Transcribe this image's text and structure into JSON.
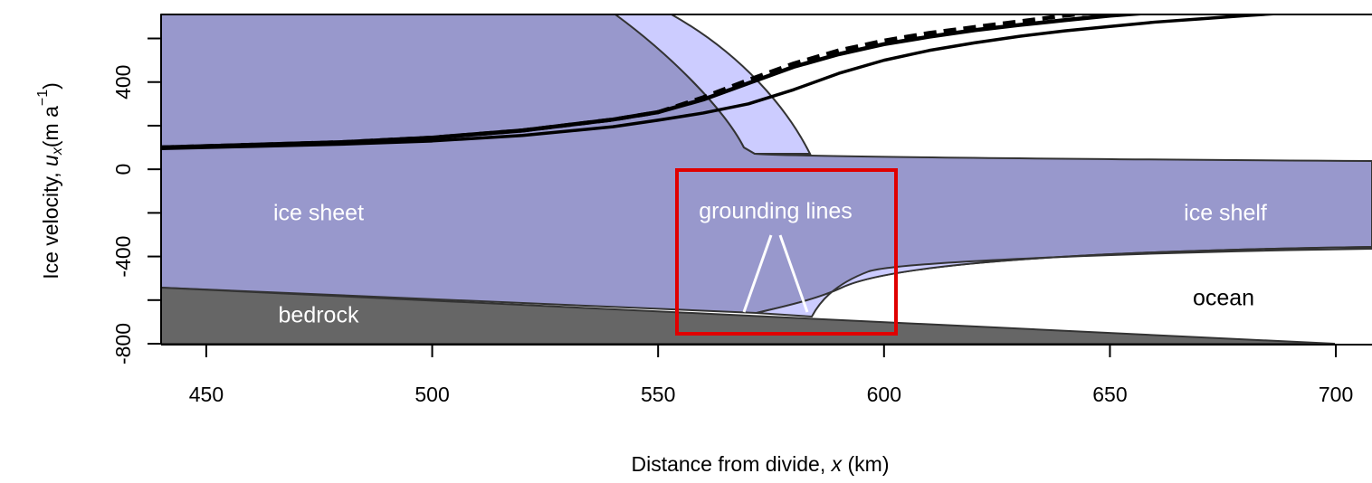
{
  "chart_data": {
    "type": "line",
    "xlabel": [
      "Distance from divide, ",
      "x",
      " (km)"
    ],
    "ylabel": [
      "Ice velocity, ",
      "u",
      "x",
      "(m a",
      "−1",
      ")"
    ],
    "annotations": [
      "ice sheet",
      "grounding lines",
      "ice shelf",
      "ocean",
      "bedrock"
    ],
    "xlim": [
      440,
      708
    ],
    "ylim": [
      -800,
      710
    ],
    "xticks": [
      450,
      500,
      550,
      600,
      650,
      700
    ],
    "yticks": [
      -800,
      {
        "value": -600,
        "label": null
      },
      -400,
      {
        "value": -200,
        "label": null
      },
      0,
      {
        "value": 200,
        "label": null
      },
      400,
      {
        "value": 600,
        "label": null
      }
    ],
    "x": [
      440,
      460,
      480,
      500,
      520,
      540,
      550,
      560,
      570,
      580,
      590,
      600,
      610,
      620,
      630,
      640,
      650,
      660,
      670,
      680,
      690
    ],
    "series": [
      {
        "color": "#000000",
        "dashed": false,
        "width": 4.5,
        "values": [
          100,
          112,
          124,
          145,
          178,
          228,
          262,
          320,
          395,
          470,
          528,
          574,
          608,
          638,
          662,
          684,
          705,
          720,
          null,
          null,
          null
        ]
      },
      {
        "color": "#000000",
        "dashed": true,
        "width": 4.5,
        "values": [
          100,
          112,
          124,
          145,
          178,
          228,
          262,
          330,
          410,
          485,
          545,
          590,
          625,
          652,
          678,
          705,
          725,
          null,
          null,
          null,
          null
        ]
      },
      {
        "color": "#000000",
        "dashed": false,
        "width": 3.5,
        "values": [
          95,
          105,
          115,
          130,
          155,
          195,
          225,
          258,
          300,
          365,
          440,
          500,
          545,
          580,
          610,
          635,
          655,
          675,
          690,
          705,
          718
        ]
      }
    ]
  }
}
